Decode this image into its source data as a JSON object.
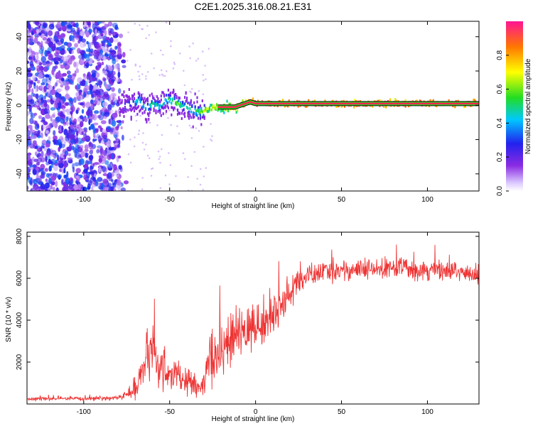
{
  "title": "C2E1.2025.316.08.21.E31",
  "chart_data": [
    {
      "type": "heatmap",
      "xlabel": "Height of straight line (km)",
      "ylabel": "Frequency (Hz)",
      "xlim": [
        -133,
        130
      ],
      "ylim": [
        -50,
        49
      ],
      "x_ticks": [
        -100,
        -50,
        0,
        50,
        100
      ],
      "y_ticks": [
        -40,
        -20,
        0,
        20,
        40
      ],
      "colorbar": {
        "label": "Normalized spectral amplitude",
        "range": [
          0.0,
          1.0
        ],
        "ticks": [
          0.0,
          0.2,
          0.4,
          0.6,
          0.8
        ],
        "tick_labels": [
          "0.0",
          "0.2",
          "0.4",
          "0.6",
          "0.8"
        ]
      },
      "description_of_data": {
        "noise_region_x": [
          -133,
          -75
        ],
        "noise_amplitude": [
          0.05,
          0.35
        ],
        "signal_track": {
          "x": [
            -80,
            -72,
            -68,
            -64,
            -60,
            -56,
            -52,
            -48,
            -44,
            -40,
            -36,
            -33,
            -30,
            -27,
            -24,
            -20,
            -16,
            -12,
            -9,
            -6,
            -3,
            0,
            5,
            20,
            40,
            60,
            80,
            100,
            130
          ],
          "frequency": [
            0,
            1,
            3,
            -2,
            1,
            -1,
            4,
            2,
            0,
            -1,
            -3,
            -4,
            -3,
            -2,
            -1,
            -1,
            -1,
            -1,
            0,
            1,
            2,
            1,
            1,
            1,
            1,
            1,
            1,
            1,
            1
          ],
          "amplitude": [
            0.25,
            0.4,
            0.5,
            0.45,
            0.5,
            0.5,
            0.55,
            0.6,
            0.55,
            0.5,
            0.55,
            0.6,
            0.65,
            0.7,
            0.75,
            0.8,
            0.85,
            0.9,
            0.95,
            1.0,
            0.95,
            1.0,
            1.0,
            1.0,
            1.0,
            1.0,
            1.0,
            1.0,
            1.0
          ]
        }
      }
    },
    {
      "type": "line",
      "xlabel": "Height of straight line (km)",
      "ylabel": "SNR (10 * v/v)",
      "xlim": [
        -133,
        130
      ],
      "ylim": [
        0,
        8200
      ],
      "x_ticks": [
        -100,
        -50,
        0,
        50,
        100
      ],
      "y_ticks": [
        2000,
        4000,
        6000,
        8000
      ],
      "color": "#ee3333",
      "series": [
        {
          "x": [
            -133,
            -120,
            -100,
            -80,
            -72,
            -68,
            -65,
            -62,
            -60,
            -58,
            -55,
            -50,
            -45,
            -40,
            -35,
            -32,
            -28,
            -26,
            -24,
            -20,
            -15,
            -10,
            -5,
            0,
            5,
            10,
            15,
            20,
            25,
            30,
            40,
            50,
            60,
            70,
            80,
            90,
            100,
            110,
            120,
            130
          ],
          "mean": [
            250,
            250,
            250,
            300,
            500,
            1200,
            1800,
            2200,
            2600,
            2000,
            1700,
            1500,
            1200,
            1100,
            900,
            700,
            1400,
            2400,
            2300,
            2600,
            3000,
            3300,
            3500,
            3700,
            3900,
            4200,
            4800,
            5300,
            5800,
            6100,
            6300,
            6400,
            6400,
            6400,
            6500,
            6500,
            6400,
            6400,
            6300,
            6100
          ],
          "spread": [
            80,
            80,
            80,
            100,
            300,
            700,
            900,
            1100,
            1300,
            1000,
            900,
            800,
            700,
            600,
            500,
            400,
            900,
            1400,
            1200,
            1100,
            1100,
            1100,
            1100,
            1000,
            1000,
            900,
            800,
            700,
            600,
            500,
            450,
            450,
            450,
            450,
            450,
            500,
            450,
            450,
            450,
            450
          ]
        }
      ]
    }
  ]
}
